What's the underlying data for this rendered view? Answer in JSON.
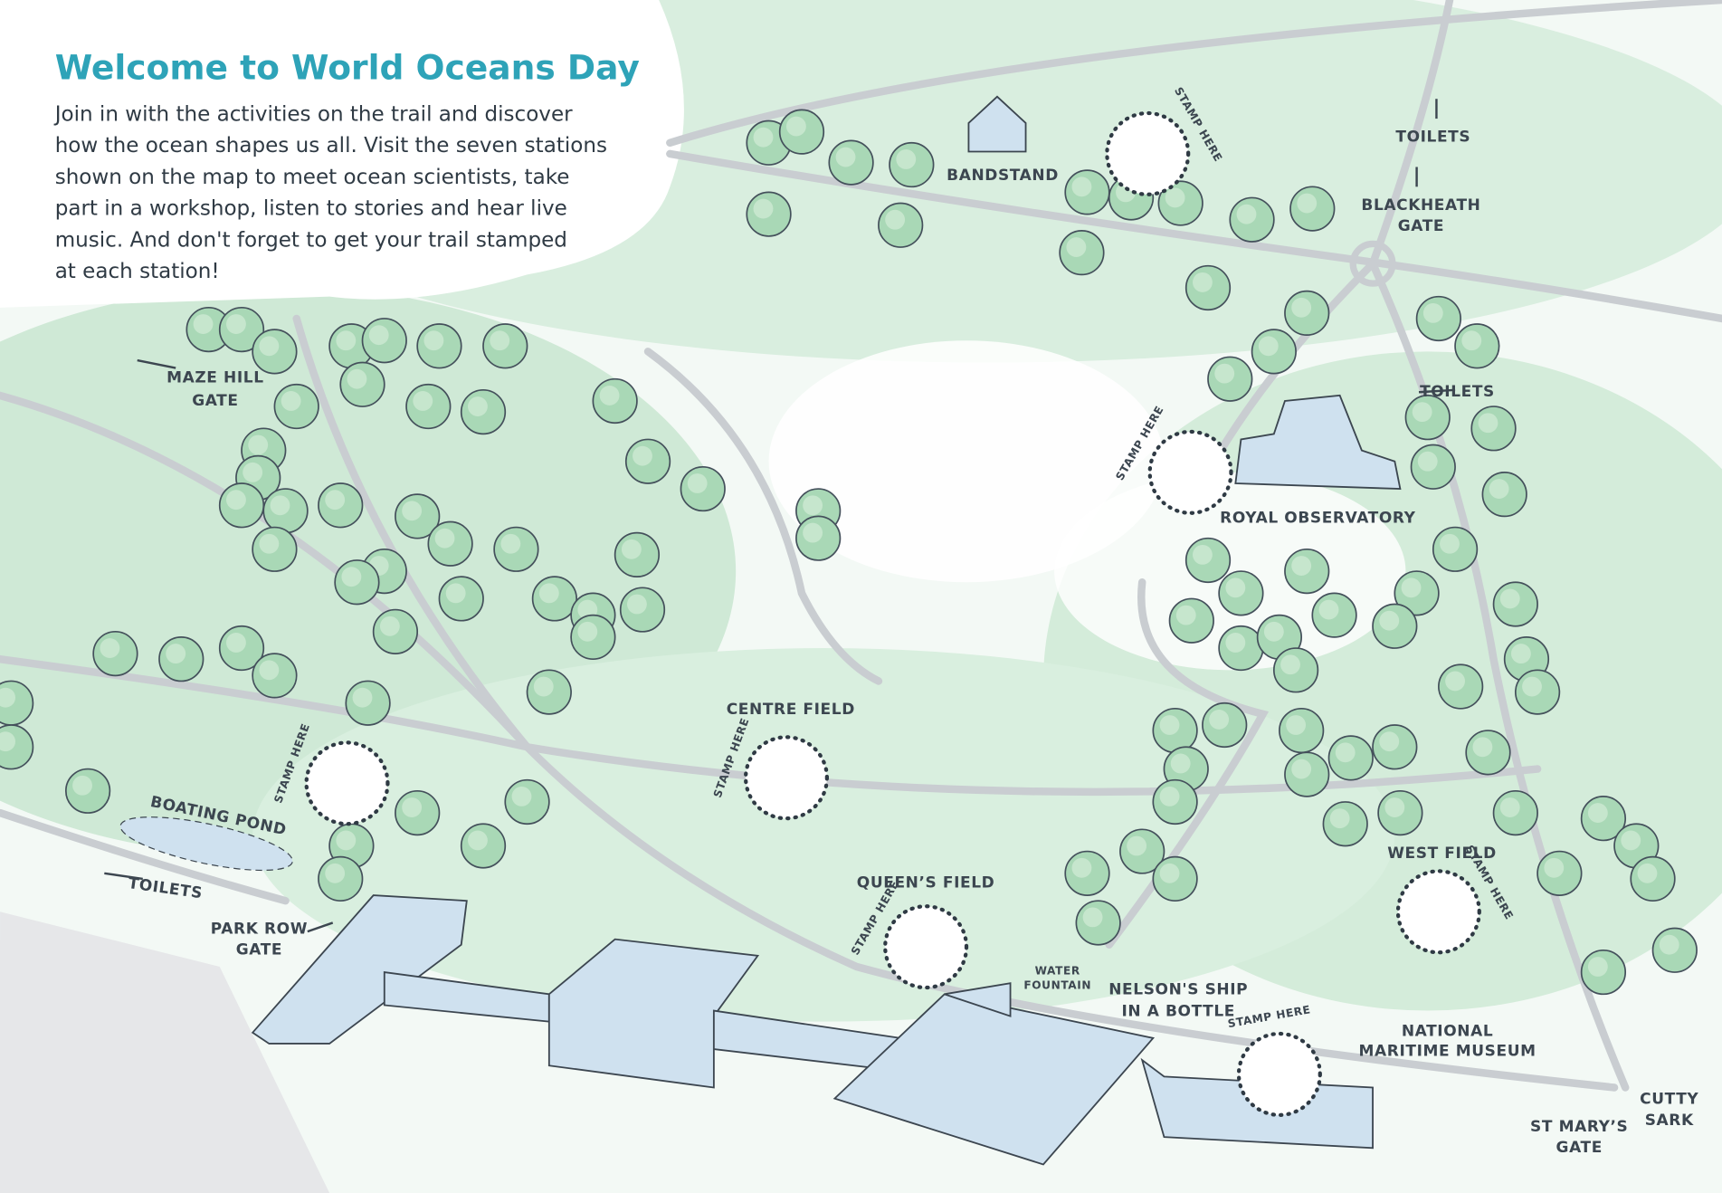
{
  "header": {
    "title": "Welcome to World Oceans Day",
    "intro": [
      "Join in with the activities on the trail and discover",
      "how the ocean shapes us all. Visit the seven stations",
      "shown on the map to meet ocean scientists, take",
      "part in a workshop, listen to stories and hear live",
      "music. And don't forget to get your trail stamped",
      "at each station!"
    ]
  },
  "labels": [
    {
      "lines": [
        "BANDSTAND"
      ]
    },
    {
      "lines": [
        "TOILETS"
      ]
    },
    {
      "lines": [
        "BLACKHEATH",
        "GATE"
      ]
    },
    {
      "lines": [
        "MAZE HILL",
        "GATE"
      ]
    },
    {
      "lines": [
        "TOILETS"
      ]
    },
    {
      "lines": [
        "ROYAL OBSERVATORY"
      ]
    },
    {
      "lines": [
        "CENTRE FIELD"
      ]
    },
    {
      "lines": [
        "BOATING POND"
      ]
    },
    {
      "lines": [
        "TOILETS"
      ]
    },
    {
      "lines": [
        "PARK ROW",
        "GATE"
      ]
    },
    {
      "lines": [
        "QUEEN’S FIELD"
      ]
    },
    {
      "lines": [
        "WATER",
        "FOUNTAIN"
      ]
    },
    {
      "lines": [
        "NELSON'S SHIP",
        "IN A BOTTLE"
      ]
    },
    {
      "lines": [
        "NATIONAL",
        "MARITIME MUSEUM"
      ]
    },
    {
      "lines": [
        "WEST FIELD"
      ]
    },
    {
      "lines": [
        "ST MARY’S",
        "GATE"
      ]
    },
    {
      "lines": [
        "CUTTY",
        "SARK"
      ]
    }
  ],
  "stamps": [
    "STAMP HERE",
    "STAMP HERE",
    "STAMP HERE",
    "STAMP HERE",
    "STAMP HERE",
    "STAMP HERE",
    "STAMP HERE"
  ]
}
